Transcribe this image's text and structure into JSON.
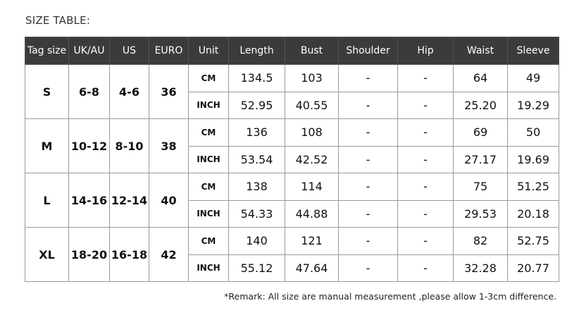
{
  "title": "SIZE TABLE:",
  "headers": [
    "Tag size",
    "UK/AU",
    "US",
    "EURO",
    "Unit",
    "Length",
    "Bust",
    "Shoulder",
    "Hip",
    "Waist",
    "Sleeve"
  ],
  "sizes": [
    {
      "tag": "S",
      "uk": "6-8",
      "us": "4-6",
      "euro": "36",
      "rows": [
        [
          "CM",
          "134.5",
          "103",
          "-",
          "-",
          "64",
          "49"
        ],
        [
          "INCH",
          "52.95",
          "40.55",
          "-",
          "-",
          "25.20",
          "19.29"
        ]
      ]
    },
    {
      "tag": "M",
      "uk": "10-12",
      "us": "8-10",
      "euro": "38",
      "rows": [
        [
          "CM",
          "136",
          "108",
          "-",
          "-",
          "69",
          "50"
        ],
        [
          "INCH",
          "53.54",
          "42.52",
          "-",
          "-",
          "27.17",
          "19.69"
        ]
      ]
    },
    {
      "tag": "L",
      "uk": "14-16",
      "us": "12-14",
      "euro": "40",
      "rows": [
        [
          "CM",
          "138",
          "114",
          "-",
          "-",
          "75",
          "51.25"
        ],
        [
          "INCH",
          "54.33",
          "44.88",
          "-",
          "-",
          "29.53",
          "20.18"
        ]
      ]
    },
    {
      "tag": "XL",
      "uk": "18-20",
      "us": "16-18",
      "euro": "42",
      "rows": [
        [
          "CM",
          "140",
          "121",
          "-",
          "-",
          "82",
          "52.75"
        ],
        [
          "INCH",
          "55.12",
          "47.64",
          "-",
          "-",
          "32.28",
          "20.77"
        ]
      ]
    }
  ],
  "remark": "*Remark: All size are manual measurement ,please allow 1-3cm difference.",
  "colors": {
    "header_bg": "#3b3b3b",
    "header_text": "#ffffff"
  }
}
